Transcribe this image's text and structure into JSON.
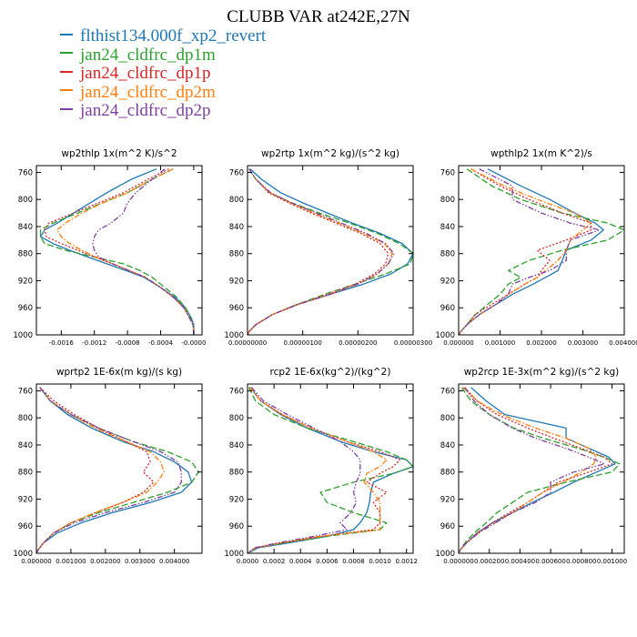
{
  "title": "CLUBB VAR at242E,27N",
  "legend": [
    {
      "label": "flthist134.000f_xp2_revert",
      "color": "#1f77b4"
    },
    {
      "label": "jan24_cldfrc_dp1m",
      "color": "#2ca02c"
    },
    {
      "label": "jan24_cldfrc_dp1p",
      "color": "#d62728"
    },
    {
      "label": "jan24_cldfrc_dp2m",
      "color": "#ff7f0e"
    },
    {
      "label": "jan24_cldfrc_dp2p",
      "color": "#7f3fa0"
    }
  ],
  "series_styles": [
    "solid",
    "longdash",
    "dotted",
    "dashdot",
    "dashdotdot"
  ],
  "chart_data": [
    {
      "type": "line",
      "title": "wp2thlp  1x(m^2 K)/s^2",
      "xlim": [
        -0.0019,
        0.0001
      ],
      "ylim": [
        1000,
        750
      ],
      "y_inverted": true,
      "xticks": [
        -0.0016,
        -0.0012,
        -0.0008,
        -0.0004,
        -0.0
      ],
      "xtick_labels": [
        "-0.0016",
        "-0.0012",
        "-0.0008",
        "-0.0004",
        "-0.0000"
      ],
      "yticks": [
        760,
        800,
        840,
        880,
        920,
        960,
        1000
      ],
      "y": [
        755,
        770,
        790,
        805,
        820,
        835,
        845,
        855,
        865,
        875,
        885,
        895,
        905,
        915,
        930,
        945,
        960,
        975,
        985,
        995,
        1000
      ],
      "series": [
        {
          "values": [
            -0.00045,
            -0.00075,
            -0.00105,
            -0.00125,
            -0.00145,
            -0.00165,
            -0.0018,
            -0.00185,
            -0.0017,
            -0.0015,
            -0.00128,
            -0.00105,
            -0.00082,
            -0.0006,
            -0.0004,
            -0.00022,
            -0.0001,
            -3e-05,
            0.0,
            0.0,
            0.0
          ]
        },
        {
          "values": [
            -0.00025,
            -0.0005,
            -0.0008,
            -0.0011,
            -0.0014,
            -0.0017,
            -0.00185,
            -0.00185,
            -0.0018,
            -0.00155,
            -0.0012,
            -0.00085,
            -0.00065,
            -0.0005,
            -0.00035,
            -0.0002,
            -0.0001,
            -4e-05,
            -1e-05,
            0.0,
            0.0
          ]
        },
        {
          "values": [
            -0.0003,
            -0.00055,
            -0.00085,
            -0.00115,
            -0.00145,
            -0.00175,
            -0.0018,
            -0.00178,
            -0.0016,
            -0.0014,
            -0.0012,
            -0.00098,
            -0.00078,
            -0.00058,
            -0.0004,
            -0.00024,
            -0.00012,
            -5e-05,
            -1e-05,
            0.0,
            0.0
          ]
        },
        {
          "values": [
            -0.00025,
            -0.0005,
            -0.0008,
            -0.0011,
            -0.00135,
            -0.00155,
            -0.00165,
            -0.0016,
            -0.0015,
            -0.00135,
            -0.00118,
            -0.00098,
            -0.00078,
            -0.00058,
            -0.0004,
            -0.00024,
            -0.00012,
            -5e-05,
            -1e-05,
            0.0,
            0.0
          ]
        },
        {
          "values": [
            -0.00035,
            -0.0005,
            -0.0007,
            -0.0008,
            -0.00085,
            -0.001,
            -0.00115,
            -0.0012,
            -0.00122,
            -0.0012,
            -0.00115,
            -0.00098,
            -0.00078,
            -0.00058,
            -0.0004,
            -0.00024,
            -0.00012,
            -5e-05,
            -1e-05,
            0.0,
            0.0
          ]
        }
      ]
    },
    {
      "type": "line",
      "title": "wp2rtp  1x(m^2 kg)/(s^2 kg)",
      "xlim": [
        0.0,
        3e-06
      ],
      "ylim": [
        1000,
        750
      ],
      "y_inverted": true,
      "xticks": [
        0.0,
        1e-06,
        2e-06,
        3e-06
      ],
      "xtick_labels": [
        "0.00000000",
        "0.00000100",
        "0.00000200",
        "0.00000300"
      ],
      "yticks": [
        760,
        800,
        840,
        880,
        920,
        960,
        1000
      ],
      "y": [
        755,
        770,
        790,
        805,
        820,
        835,
        850,
        865,
        880,
        895,
        910,
        925,
        940,
        955,
        970,
        985,
        995,
        1000
      ],
      "series": [
        {
          "values": [
            5e-08,
            2.5e-07,
            6e-07,
            1e-06,
            1.45e-06,
            1.9e-06,
            2.4e-06,
            2.8e-06,
            3e-06,
            2.9e-06,
            2.6e-06,
            2.1e-06,
            1.5e-06,
            9e-07,
            4.5e-07,
            1.5e-07,
            3e-08,
            0.0
          ]
        },
        {
          "values": [
            3e-08,
            1.5e-07,
            4e-07,
            8e-07,
            1.3e-06,
            1.85e-06,
            2.35e-06,
            2.75e-06,
            3e-06,
            2.95e-06,
            2.5e-06,
            1.95e-06,
            1.4e-06,
            9e-07,
            4.5e-07,
            1.5e-07,
            3e-08,
            0.0
          ]
        },
        {
          "values": [
            3e-08,
            1.5e-07,
            3.8e-07,
            7.5e-07,
            1.15e-06,
            1.6e-06,
            2.05e-06,
            2.4e-06,
            2.55e-06,
            2.5e-06,
            2.3e-06,
            1.95e-06,
            1.45e-06,
            9e-07,
            4.5e-07,
            1.5e-07,
            3e-08,
            0.0
          ]
        },
        {
          "values": [
            3e-08,
            1.5e-07,
            4e-07,
            7.8e-07,
            1.2e-06,
            1.65e-06,
            2.1e-06,
            2.48e-06,
            2.62e-06,
            2.55e-06,
            2.35e-06,
            2e-06,
            1.5e-06,
            9.2e-07,
            4.5e-07,
            1.5e-07,
            3e-08,
            0.0
          ]
        },
        {
          "values": [
            3e-08,
            1.5e-07,
            4.2e-07,
            8e-07,
            1.25e-06,
            1.7e-06,
            2.15e-06,
            2.5e-06,
            2.65e-06,
            2.55e-06,
            2.35e-06,
            2e-06,
            1.5e-06,
            9.2e-07,
            4.5e-07,
            1.5e-07,
            3e-08,
            0.0
          ]
        }
      ]
    },
    {
      "type": "line",
      "title": "wpthlp2  1x(m K^2)/s",
      "xlim": [
        0.0,
        0.004
      ],
      "ylim": [
        1000,
        750
      ],
      "y_inverted": true,
      "xticks": [
        0.0,
        0.001,
        0.002,
        0.003,
        0.004
      ],
      "xtick_labels": [
        "0.000000",
        "0.001000",
        "0.002000",
        "0.003000",
        "0.004000"
      ],
      "yticks": [
        760,
        800,
        840,
        880,
        920,
        960,
        1000
      ],
      "y": [
        755,
        780,
        800,
        820,
        835,
        845,
        860,
        875,
        890,
        905,
        915,
        925,
        940,
        955,
        970,
        985,
        995,
        1000
      ],
      "series": [
        {
          "values": [
            0.0007,
            0.0015,
            0.0022,
            0.0028,
            0.0033,
            0.0035,
            0.0032,
            0.0026,
            0.0025,
            0.0024,
            0.0021,
            0.0018,
            0.0013,
            0.0009,
            0.0005,
            0.0002,
            5e-05,
            0.0
          ]
        },
        {
          "values": [
            0.0002,
            0.0008,
            0.0015,
            0.0025,
            0.0036,
            0.004,
            0.0036,
            0.0025,
            0.0017,
            0.0012,
            0.0015,
            0.0012,
            0.001,
            0.0007,
            0.0004,
            0.0002,
            5e-05,
            0.0
          ]
        },
        {
          "values": [
            0.0003,
            0.001,
            0.0017,
            0.0025,
            0.0032,
            0.0032,
            0.0026,
            0.0019,
            0.0022,
            0.002,
            0.0019,
            0.0016,
            0.0012,
            0.0008,
            0.0004,
            0.0002,
            5e-05,
            0.0
          ]
        },
        {
          "values": [
            0.0003,
            0.0011,
            0.0019,
            0.0028,
            0.0032,
            0.003,
            0.0027,
            0.0026,
            0.0024,
            0.0021,
            0.0019,
            0.0016,
            0.0012,
            0.0009,
            0.0005,
            0.0002,
            5e-05,
            0.0
          ]
        },
        {
          "values": [
            0.0005,
            0.0013,
            0.0013,
            0.002,
            0.0027,
            0.0034,
            0.0027,
            0.0026,
            0.0026,
            0.0022,
            0.0017,
            0.0013,
            0.0012,
            0.0009,
            0.0005,
            0.0002,
            5e-05,
            0.0
          ]
        }
      ]
    },
    {
      "type": "line",
      "title": "wprtp2  1E-6x(m kg)/(s kg)",
      "xlim": [
        0.0,
        0.0048
      ],
      "ylim": [
        1000,
        750
      ],
      "y_inverted": true,
      "xticks": [
        0.0,
        0.001,
        0.002,
        0.003,
        0.004
      ],
      "xtick_labels": [
        "0.000000",
        "0.001000",
        "0.002000",
        "0.003000",
        "0.004000"
      ],
      "yticks": [
        760,
        800,
        840,
        880,
        920,
        960,
        1000
      ],
      "y": [
        755,
        775,
        795,
        815,
        835,
        850,
        865,
        880,
        895,
        910,
        925,
        940,
        955,
        970,
        985,
        995,
        1000
      ],
      "series": [
        {
          "values": [
            0.0001,
            0.0004,
            0.0009,
            0.0016,
            0.0025,
            0.0034,
            0.004,
            0.0044,
            0.0045,
            0.0042,
            0.0033,
            0.0022,
            0.0013,
            0.0006,
            0.0002,
            5e-05,
            0.0
          ]
        },
        {
          "values": [
            0.0001,
            0.0004,
            0.001,
            0.0018,
            0.0028,
            0.0038,
            0.0045,
            0.0047,
            0.0045,
            0.0038,
            0.0028,
            0.0018,
            0.001,
            0.0005,
            0.0002,
            5e-05,
            0.0
          ]
        },
        {
          "values": [
            0.0001,
            0.0005,
            0.0011,
            0.0018,
            0.0026,
            0.0032,
            0.0033,
            0.0031,
            0.0034,
            0.0031,
            0.0025,
            0.0017,
            0.001,
            0.0005,
            0.0002,
            5e-05,
            0.0
          ]
        },
        {
          "values": [
            0.0001,
            0.0004,
            0.001,
            0.0017,
            0.0026,
            0.0033,
            0.0036,
            0.0037,
            0.0035,
            0.0032,
            0.0025,
            0.0017,
            0.001,
            0.0005,
            0.0002,
            5e-05,
            0.0
          ]
        },
        {
          "values": [
            0.0001,
            0.0004,
            0.001,
            0.0018,
            0.0028,
            0.0036,
            0.0041,
            0.0042,
            0.0042,
            0.004,
            0.0031,
            0.002,
            0.0011,
            0.0005,
            0.0002,
            5e-05,
            0.0
          ]
        }
      ]
    },
    {
      "type": "line",
      "title": "rcp2  1E-6x(kg^2)/(kg^2)",
      "xlim": [
        0.0,
        0.00125
      ],
      "ylim": [
        1000,
        750
      ],
      "y_inverted": true,
      "xticks": [
        0.0,
        0.0002,
        0.0004,
        0.0006,
        0.0008,
        0.001,
        0.0012
      ],
      "xtick_labels": [
        "0.0000",
        "0.0002",
        "0.0004",
        "0.0006",
        "0.0008",
        "0.0010",
        "0.0012"
      ],
      "yticks": [
        760,
        800,
        840,
        880,
        920,
        960,
        1000
      ],
      "y": [
        755,
        775,
        795,
        815,
        835,
        850,
        862,
        872,
        882,
        895,
        910,
        925,
        940,
        955,
        965,
        975,
        985,
        992,
        1000
      ],
      "series": [
        {
          "values": [
            2e-05,
            0.0001,
            0.00025,
            0.00045,
            0.0007,
            0.00095,
            0.0012,
            0.00125,
            0.0011,
            0.00095,
            0.00093,
            0.00092,
            0.0009,
            0.00085,
            0.0008,
            0.0006,
            0.0003,
            8e-05,
            0.0
          ]
        },
        {
          "values": [
            1e-05,
            6e-05,
            0.0002,
            0.00045,
            0.0008,
            0.00105,
            0.0012,
            0.00125,
            0.0011,
            0.0008,
            0.00055,
            0.0006,
            0.0008,
            0.00105,
            0.001,
            0.0006,
            0.00025,
            6e-05,
            0.0
          ]
        },
        {
          "values": [
            2e-05,
            0.0001,
            0.00026,
            0.00048,
            0.00075,
            0.001,
            0.00115,
            0.0011,
            0.001,
            0.0009,
            0.00105,
            0.00095,
            0.001,
            0.001,
            0.00095,
            0.00055,
            0.00025,
            6e-05,
            0.0
          ]
        },
        {
          "values": [
            2e-05,
            0.0001,
            0.00026,
            0.00048,
            0.00075,
            0.00095,
            0.00105,
            0.001,
            0.0009,
            0.00088,
            0.00095,
            0.001,
            0.001,
            0.001,
            0.001,
            0.00055,
            0.00025,
            6e-05,
            0.0
          ]
        },
        {
          "values": [
            3e-05,
            0.00012,
            0.0003,
            0.0005,
            0.0007,
            0.0008,
            0.00085,
            0.00085,
            0.00085,
            0.00082,
            0.0008,
            0.00082,
            0.00078,
            0.0007,
            0.00075,
            0.0005,
            0.00022,
            5e-05,
            0.0
          ]
        }
      ]
    },
    {
      "type": "line",
      "title": "wp2rcp  1E-3x(m^2 kg)/(s^2 kg)",
      "xlim": [
        0.0,
        0.00108
      ],
      "ylim": [
        1000,
        750
      ],
      "y_inverted": true,
      "xticks": [
        0.0,
        0.0002,
        0.0004,
        0.0006,
        0.0008,
        0.001
      ],
      "xtick_labels": [
        "0.000000",
        "0.000200",
        "0.000400",
        "0.000600",
        "0.000800",
        "0.001000"
      ],
      "yticks": [
        760,
        800,
        840,
        880,
        920,
        960,
        1000
      ],
      "y": [
        755,
        775,
        795,
        815,
        830,
        845,
        858,
        868,
        880,
        895,
        910,
        925,
        940,
        955,
        970,
        985,
        995,
        1000
      ],
      "series": [
        {
          "values": [
            8e-05,
            0.00018,
            0.0003,
            0.0007,
            0.0007,
            0.00085,
            0.00098,
            0.00102,
            0.0009,
            0.00075,
            0.00062,
            0.00048,
            0.00035,
            0.00022,
            0.00012,
            5e-05,
            1e-05,
            0.0
          ]
        },
        {
          "values": [
            2e-05,
            8e-05,
            0.0002,
            0.00036,
            0.00055,
            0.00078,
            0.00095,
            0.00105,
            0.001,
            0.0007,
            0.00045,
            0.00035,
            0.00025,
            0.00018,
            0.0001,
            4e-05,
            1e-05,
            0.0
          ]
        },
        {
          "values": [
            4e-05,
            0.00012,
            0.00025,
            0.00045,
            0.00062,
            0.0008,
            0.00095,
            0.001,
            0.00085,
            0.00065,
            0.00055,
            0.00045,
            0.00033,
            0.00022,
            0.00012,
            5e-05,
            1e-05,
            0.0
          ]
        },
        {
          "values": [
            3e-05,
            0.00012,
            0.00028,
            0.0005,
            0.0007,
            0.00085,
            0.0009,
            0.00088,
            0.0008,
            0.00068,
            0.00055,
            0.00045,
            0.00035,
            0.00024,
            0.00013,
            5e-05,
            1e-05,
            0.0
          ]
        },
        {
          "values": [
            4e-05,
            0.0001,
            0.0002,
            0.00035,
            0.0005,
            0.0007,
            0.00085,
            0.00095,
            0.00075,
            0.0006,
            0.0006,
            0.0005,
            0.00035,
            0.00024,
            0.00013,
            5e-05,
            1e-05,
            0.0
          ]
        }
      ]
    }
  ]
}
